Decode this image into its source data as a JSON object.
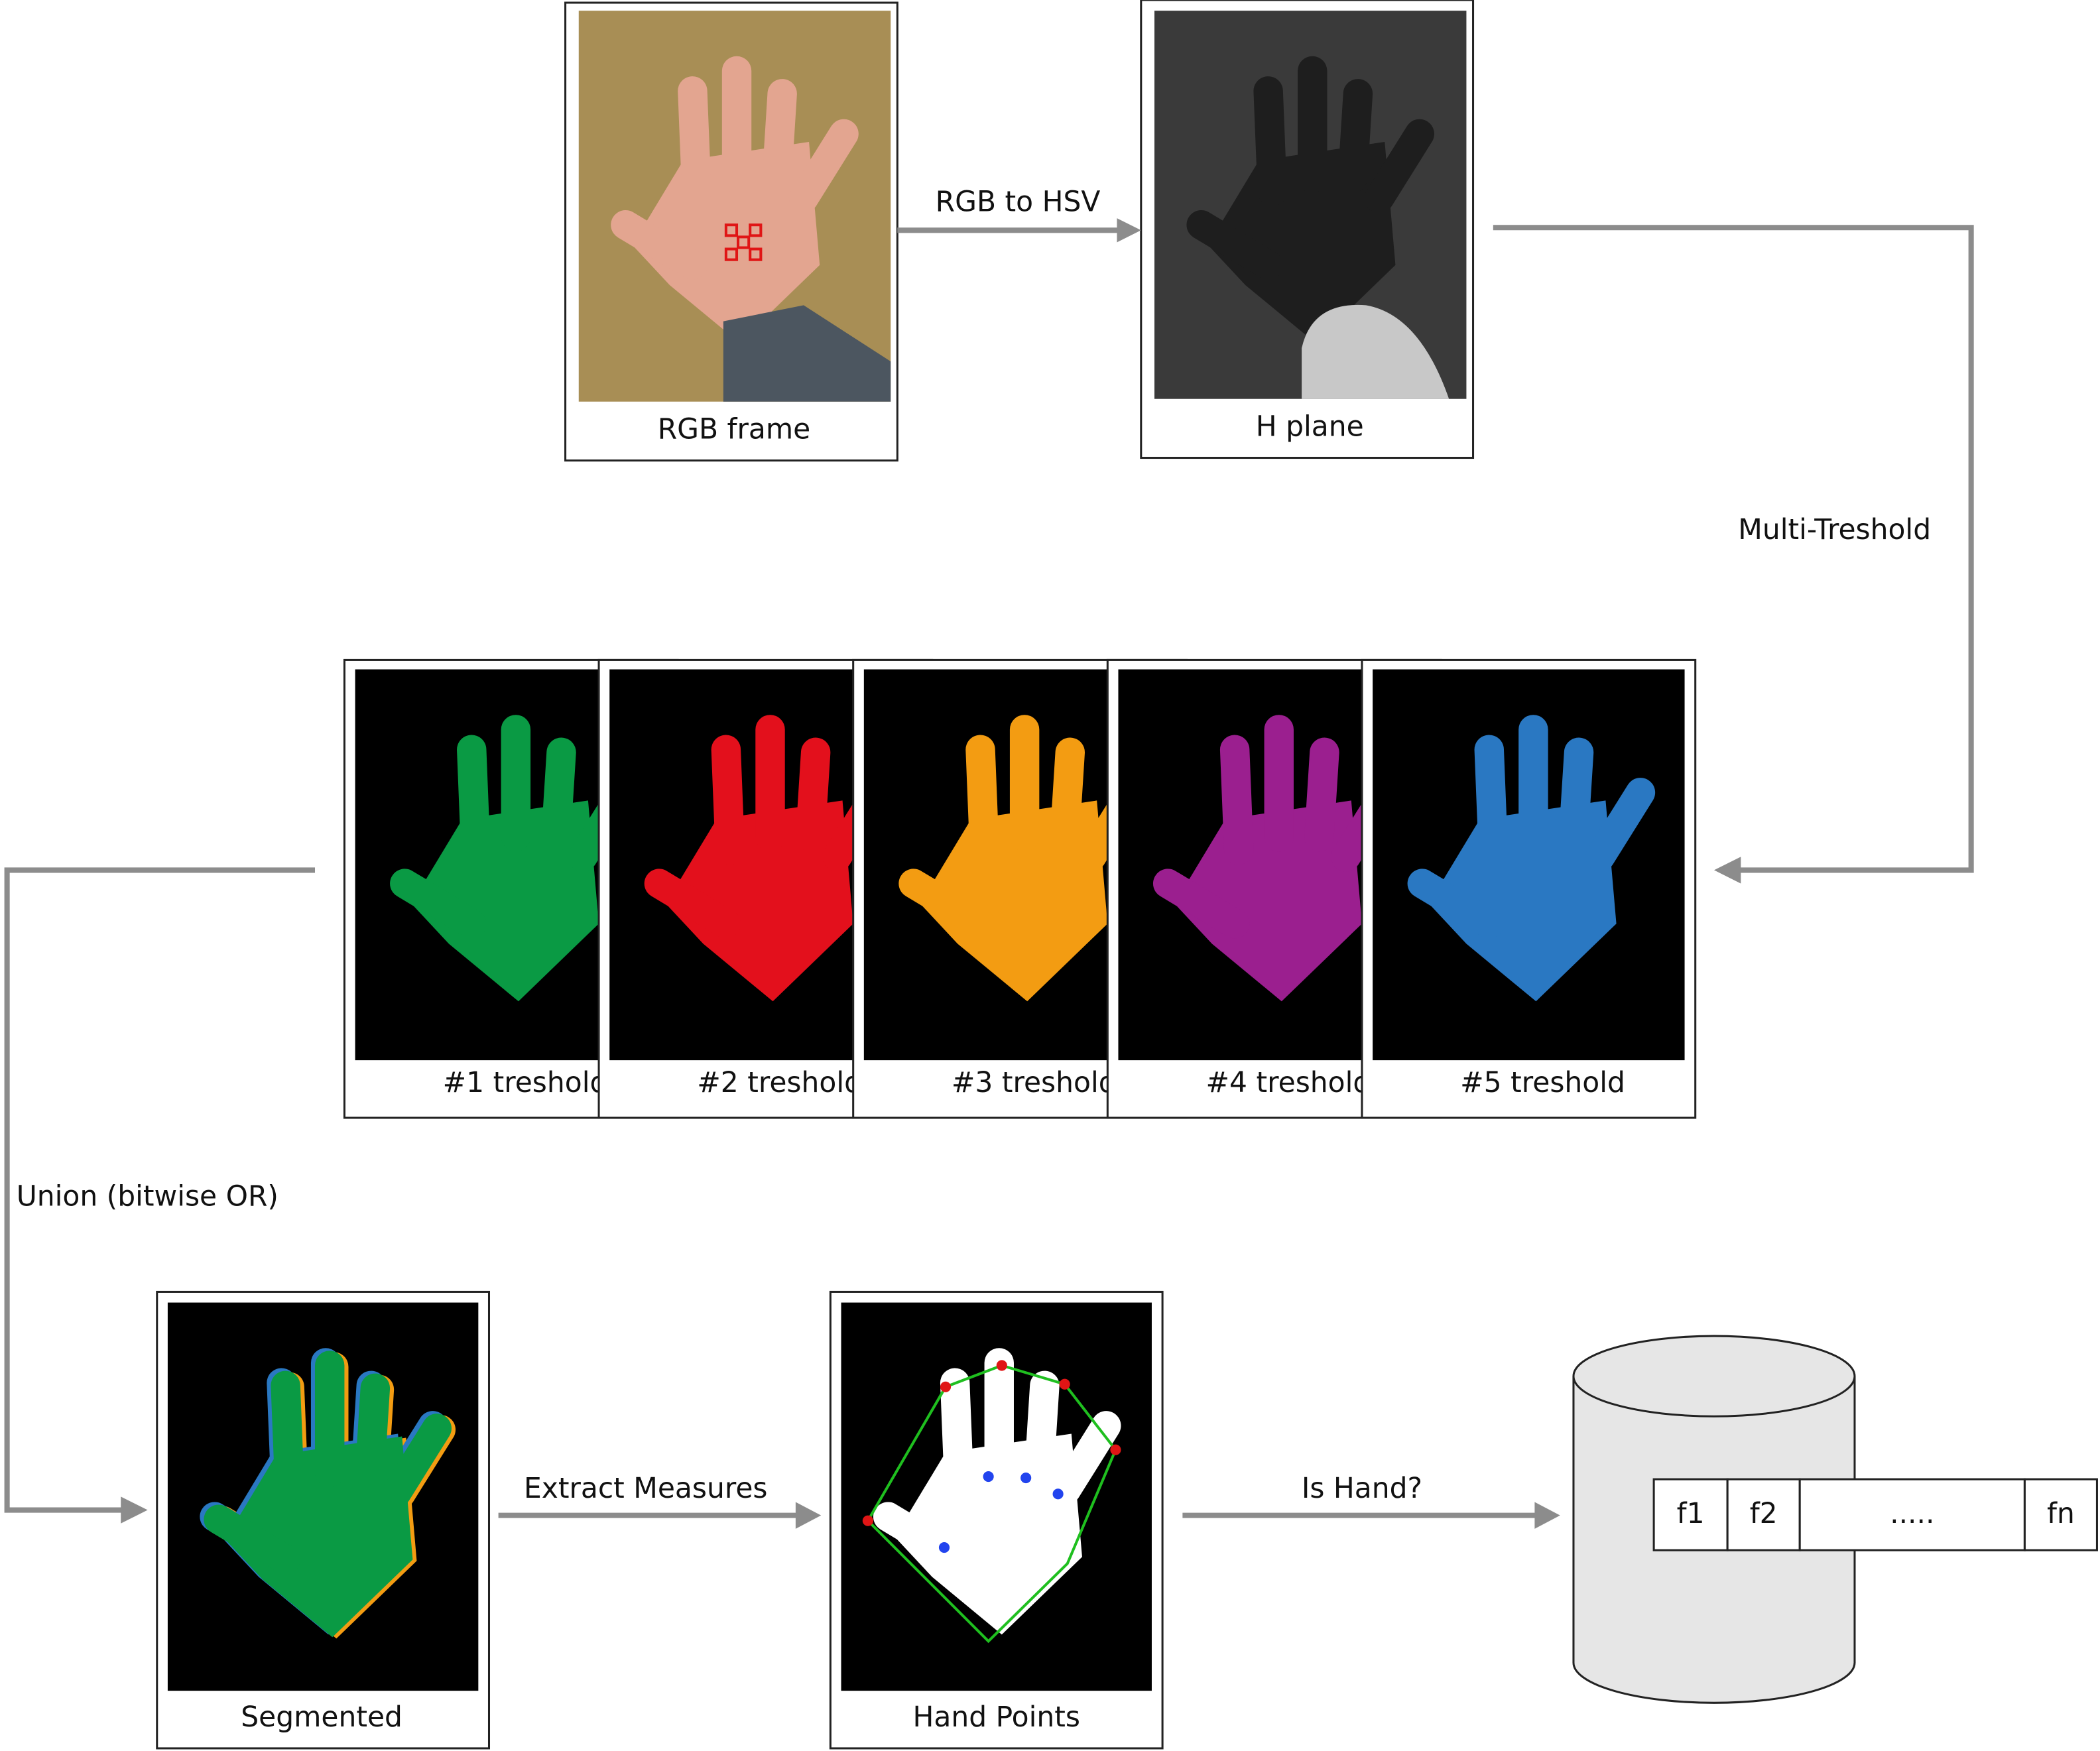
{
  "frames": [
    {
      "label": "RGB frame"
    },
    {
      "label": "H plane"
    },
    {
      "label": "#1 treshold"
    },
    {
      "label": "#2 treshold"
    },
    {
      "label": "#3 treshold"
    },
    {
      "label": "#4 treshold"
    },
    {
      "label": "#5 treshold"
    },
    {
      "label": "Segmented"
    },
    {
      "label": "Hand Points"
    }
  ],
  "edges": [
    {
      "label": "RGB to HSV"
    },
    {
      "label": "Multi-Treshold"
    },
    {
      "label": "Union (bitwise OR)"
    },
    {
      "label": "Extract Measures"
    },
    {
      "label": "Is Hand?"
    }
  ],
  "database": {
    "fields": [
      "f1",
      "f2",
      ".....",
      "fn"
    ]
  }
}
